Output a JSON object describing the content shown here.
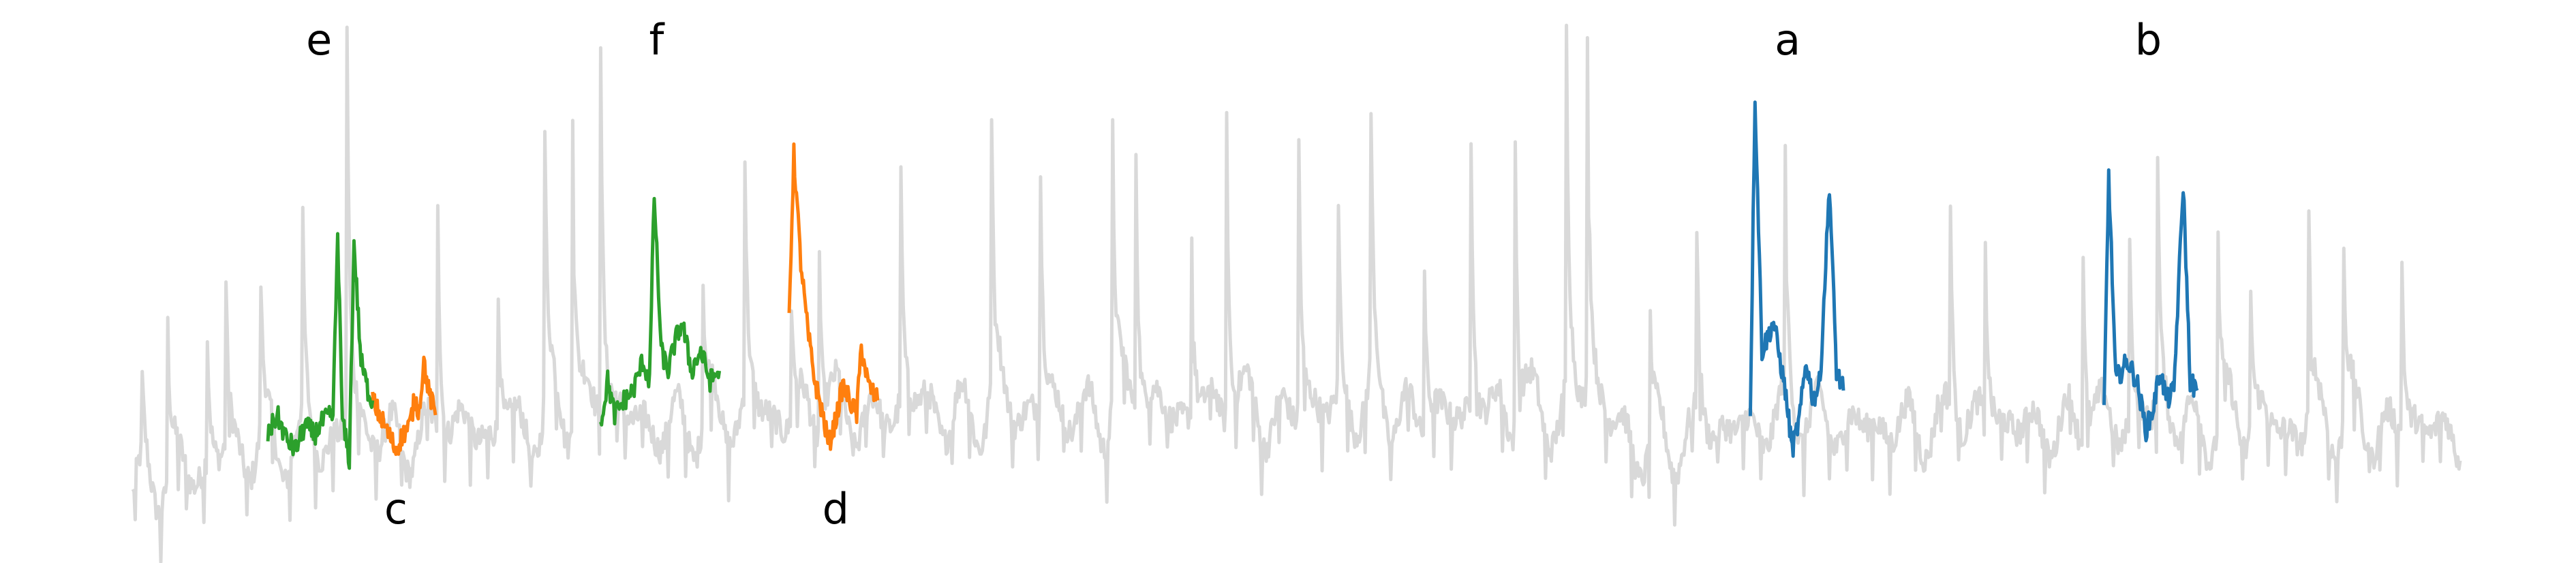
{
  "chart_data": {
    "type": "line",
    "title": "",
    "xlabel": "",
    "ylabel": "",
    "axes_visible": false,
    "grid": false,
    "xlim": [
      0,
      1000
    ],
    "ylim": [
      -0.6,
      3.8
    ],
    "background_series": {
      "color": "#d9d9d9",
      "x_start": 0,
      "x_end": 1000,
      "base_levels": [
        [
          0,
          -0.25
        ],
        [
          60,
          0.15
        ],
        [
          150,
          0.35
        ],
        [
          350,
          0.55
        ],
        [
          630,
          0.45
        ],
        [
          650,
          0.15
        ],
        [
          700,
          0.45
        ],
        [
          1000,
          0.35
        ]
      ],
      "spikes": [
        {
          "x": 4,
          "h": 0.6
        },
        {
          "x": 15,
          "h": 1.2
        },
        {
          "x": 32,
          "h": 1.0
        },
        {
          "x": 40,
          "h": 1.3
        },
        {
          "x": 55,
          "h": 1.2
        },
        {
          "x": 73,
          "h": 1.5
        },
        {
          "x": 92,
          "h": 3.2
        },
        {
          "x": 131,
          "h": 1.9
        },
        {
          "x": 157,
          "h": 1.1
        },
        {
          "x": 177,
          "h": 2.2
        },
        {
          "x": 189,
          "h": 2.6
        },
        {
          "x": 201,
          "h": 3.0
        },
        {
          "x": 245,
          "h": 1.1
        },
        {
          "x": 263,
          "h": 1.9
        },
        {
          "x": 283,
          "h": 0.9
        },
        {
          "x": 295,
          "h": 1.5
        },
        {
          "x": 330,
          "h": 1.8
        },
        {
          "x": 369,
          "h": 2.2
        },
        {
          "x": 390,
          "h": 1.8
        },
        {
          "x": 421,
          "h": 2.2
        },
        {
          "x": 431,
          "h": 2.1
        },
        {
          "x": 455,
          "h": 1.4
        },
        {
          "x": 470,
          "h": 2.4
        },
        {
          "x": 501,
          "h": 2.2
        },
        {
          "x": 518,
          "h": 1.5
        },
        {
          "x": 532,
          "h": 2.1
        },
        {
          "x": 555,
          "h": 1.3
        },
        {
          "x": 575,
          "h": 2.2
        },
        {
          "x": 594,
          "h": 2.3
        },
        {
          "x": 616,
          "h": 2.8
        },
        {
          "x": 625,
          "h": 2.9
        },
        {
          "x": 652,
          "h": 0.9
        },
        {
          "x": 672,
          "h": 1.5
        },
        {
          "x": 710,
          "h": 1.8
        },
        {
          "x": 781,
          "h": 1.6
        },
        {
          "x": 796,
          "h": 1.3
        },
        {
          "x": 838,
          "h": 1.6
        },
        {
          "x": 858,
          "h": 1.4
        },
        {
          "x": 870,
          "h": 2.0
        },
        {
          "x": 896,
          "h": 1.5
        },
        {
          "x": 910,
          "h": 1.2
        },
        {
          "x": 935,
          "h": 1.6
        },
        {
          "x": 950,
          "h": 1.4
        },
        {
          "x": 975,
          "h": 1.4
        }
      ]
    },
    "highlighted_segments": [
      {
        "label": "a",
        "color": "#1f77b4",
        "x_start": 695,
        "x_end": 735,
        "label_x": 711,
        "label_position": "top",
        "points": [
          [
            695,
            0.6
          ],
          [
            697,
            3.8
          ],
          [
            700,
            1.2
          ],
          [
            705,
            1.5
          ],
          [
            710,
            0.8
          ],
          [
            713,
            0.2
          ],
          [
            716,
            0.5
          ],
          [
            719,
            1.1
          ],
          [
            722,
            0.7
          ],
          [
            725,
            0.9
          ],
          [
            729,
            2.9
          ],
          [
            732,
            1.0
          ],
          [
            735,
            0.8
          ]
        ]
      },
      {
        "label": "b",
        "color": "#1f77b4",
        "x_start": 847,
        "x_end": 887,
        "label_x": 866,
        "label_position": "top",
        "points": [
          [
            847,
            0.6
          ],
          [
            849,
            3.0
          ],
          [
            852,
            0.9
          ],
          [
            857,
            1.1
          ],
          [
            861,
            0.9
          ],
          [
            865,
            0.4
          ],
          [
            868,
            0.6
          ],
          [
            871,
            1.0
          ],
          [
            874,
            0.7
          ],
          [
            877,
            0.8
          ],
          [
            881,
            2.9
          ],
          [
            884,
            0.9
          ],
          [
            887,
            0.8
          ]
        ]
      },
      {
        "label": "c",
        "color": "#ff7f0e",
        "x_start": 103,
        "x_end": 130,
        "label_x": 113,
        "label_position": "bottom",
        "points": [
          [
            103,
            0.7
          ],
          [
            107,
            0.5
          ],
          [
            110,
            0.35
          ],
          [
            113,
            0.2
          ],
          [
            116,
            0.35
          ],
          [
            119,
            0.45
          ],
          [
            121,
            0.7
          ],
          [
            123,
            0.6
          ],
          [
            125,
            1.1
          ],
          [
            127,
            0.8
          ],
          [
            130,
            0.55
          ]
        ]
      },
      {
        "label": "d",
        "color": "#ff7f0e",
        "x_start": 282,
        "x_end": 320,
        "label_x": 302,
        "label_position": "bottom",
        "points": [
          [
            282,
            1.6
          ],
          [
            284,
            3.2
          ],
          [
            287,
            2.1
          ],
          [
            290,
            1.4
          ],
          [
            293,
            0.9
          ],
          [
            296,
            0.6
          ],
          [
            299,
            0.25
          ],
          [
            302,
            0.5
          ],
          [
            305,
            0.85
          ],
          [
            308,
            0.7
          ],
          [
            311,
            0.55
          ],
          [
            313,
            1.25
          ],
          [
            316,
            0.85
          ],
          [
            320,
            0.7
          ]
        ]
      },
      {
        "label": "e",
        "color": "#2ca02c",
        "x_start": 58,
        "x_end": 103,
        "label_x": 80,
        "label_position": "top",
        "points": [
          [
            58,
            0.35
          ],
          [
            62,
            0.55
          ],
          [
            66,
            0.3
          ],
          [
            70,
            0.2
          ],
          [
            74,
            0.45
          ],
          [
            78,
            0.35
          ],
          [
            82,
            0.5
          ],
          [
            86,
            0.55
          ],
          [
            88,
            2.4
          ],
          [
            90,
            0.5
          ],
          [
            93,
            0.1
          ],
          [
            95,
            2.3
          ],
          [
            98,
            1.1
          ],
          [
            101,
            0.8
          ],
          [
            103,
            0.7
          ]
        ]
      },
      {
        "label": "f",
        "color": "#2ca02c",
        "x_start": 201,
        "x_end": 252,
        "label_x": 225,
        "label_position": "top",
        "points": [
          [
            201,
            0.45
          ],
          [
            204,
            0.9
          ],
          [
            207,
            0.55
          ],
          [
            211,
            0.7
          ],
          [
            215,
            0.8
          ],
          [
            219,
            1.1
          ],
          [
            222,
            0.9
          ],
          [
            224,
            2.8
          ],
          [
            227,
            1.2
          ],
          [
            230,
            1.0
          ],
          [
            233,
            1.3
          ],
          [
            236,
            1.5
          ],
          [
            240,
            1.0
          ],
          [
            244,
            1.2
          ],
          [
            248,
            0.9
          ],
          [
            252,
            1.0
          ]
        ]
      }
    ]
  }
}
